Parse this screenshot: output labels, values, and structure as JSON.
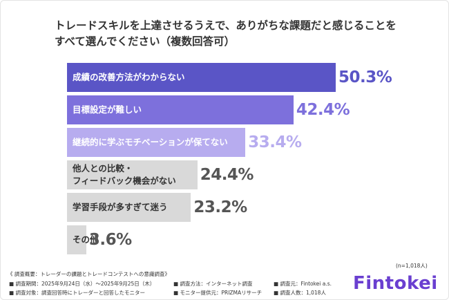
{
  "chart_data": {
    "type": "hbar",
    "title": [
      "トレードスキルを上達させるうえで、ありがちな課題だと感じることを",
      "すべて選んでください（複数回答可）"
    ],
    "categories": [
      "成績の改善方法がわからない",
      "目標設定が難しい",
      "継続的に学ぶモチベーションが保てない",
      "他人との比較・\nフィードバック機会がない",
      "学習手段が多すぎて迷う",
      "その他"
    ],
    "values": [
      50.3,
      42.4,
      33.4,
      24.4,
      23.2,
      3.6
    ],
    "value_labels": [
      "50.3%",
      "42.4%",
      "33.4%",
      "24.4%",
      "23.2%",
      "3.6%"
    ],
    "colors": [
      "#5a55c6",
      "#7d70dc",
      "#b7acef",
      "#d9d9d9",
      "#d9d9d9",
      "#d9d9d9"
    ],
    "label_colors": [
      "#5a55c6",
      "#7d70dc",
      "#b7acef",
      "#555555",
      "#555555",
      "#555555"
    ],
    "sample_note": "(n=1,018人)",
    "survey": {
      "heading": "《 調査概要：トレーダーの課題とトレードコンテストへの意識調査》",
      "items": [
        [
          "■ 調査期間：2025年9月24日（水）～2025年9月25日（木）",
          "■ 調査方法：インターネット調査",
          "■ 調査元：Fintokei a.s."
        ],
        [
          "■ 調査対象：調査回答時にトレーダーと回答したモニター",
          "■ モニター提供元：PRIZMAリサーチ",
          "■ 調査人数：1,018人"
        ]
      ]
    },
    "logo": "Fintokei"
  }
}
